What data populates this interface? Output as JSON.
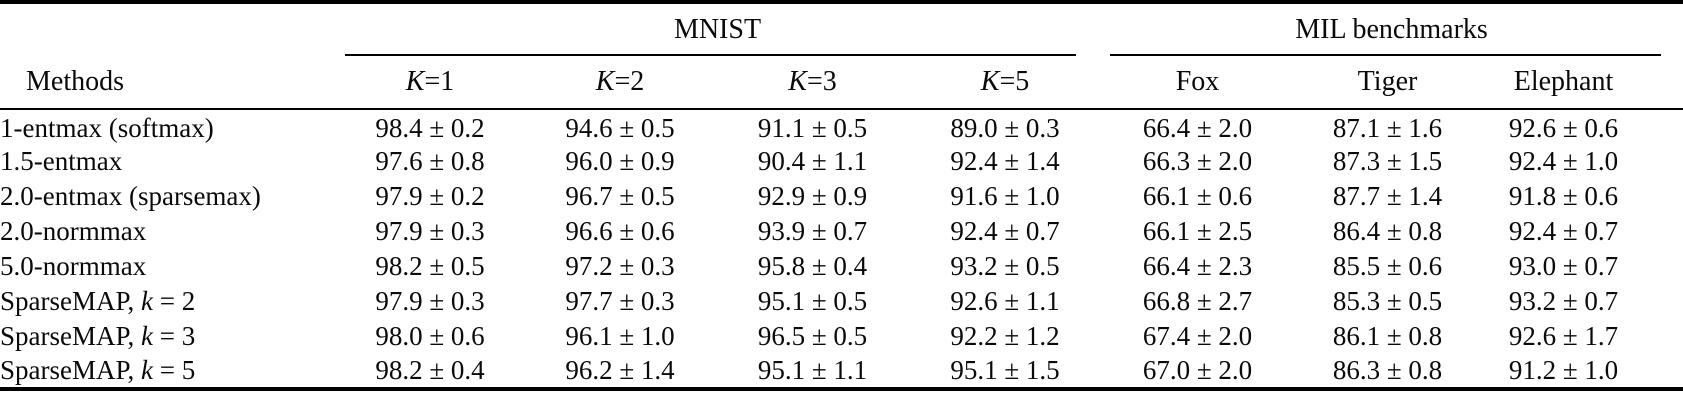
{
  "table": {
    "group_headers": [
      {
        "label": "MNIST",
        "span": 4
      },
      {
        "label": "MIL benchmarks",
        "span": 3
      }
    ],
    "methods_header": "Methods",
    "columns": [
      {
        "math": "K",
        "rest": "=1"
      },
      {
        "math": "K",
        "rest": "=2"
      },
      {
        "math": "K",
        "rest": "=3"
      },
      {
        "math": "K",
        "rest": "=5"
      },
      {
        "label": "Fox"
      },
      {
        "label": "Tiger"
      },
      {
        "label": "Elephant"
      }
    ],
    "rows": [
      {
        "method_parts": [
          {
            "text": "1-entmax (softmax)"
          }
        ],
        "cells": [
          {
            "text": "98.4 ± 0.2",
            "bold": true
          },
          {
            "text": "94.6 ± 0.5"
          },
          {
            "text": "91.1 ± 0.5"
          },
          {
            "text": "89.0 ± 0.3"
          },
          {
            "text": "66.4 ± 2.0"
          },
          {
            "text": "87.1 ± 1.6"
          },
          {
            "text": "92.6 ± 0.6"
          }
        ]
      },
      {
        "method_parts": [
          {
            "text": "1.5-entmax"
          }
        ],
        "cells": [
          {
            "text": "97.6 ± 0.8"
          },
          {
            "text": "96.0 ± 0.9"
          },
          {
            "text": "90.4 ± 1.1"
          },
          {
            "text": "92.4 ± 1.4"
          },
          {
            "text": "66.3 ± 2.0"
          },
          {
            "text": "87.3 ± 1.5"
          },
          {
            "text": "92.4 ± 1.0"
          }
        ]
      },
      {
        "method_parts": [
          {
            "text": "2.0-entmax (sparsemax)"
          }
        ],
        "cells": [
          {
            "text": "97.9 ± 0.2"
          },
          {
            "text": "96.7 ± 0.5"
          },
          {
            "text": "92.9 ± 0.9"
          },
          {
            "text": "91.6 ± 1.0"
          },
          {
            "text": "66.1 ± 0.6"
          },
          {
            "text": "87.7 ± 1.4",
            "bold": true
          },
          {
            "text": "91.8 ± 0.6"
          }
        ]
      },
      {
        "method_parts": [
          {
            "text": "2.0-normmax"
          }
        ],
        "cells": [
          {
            "text": "97.9 ± 0.3"
          },
          {
            "text": "96.6 ± 0.6"
          },
          {
            "text": "93.9 ± 0.7"
          },
          {
            "text": "92.4 ± 0.7"
          },
          {
            "text": "66.1 ± 2.5"
          },
          {
            "text": "86.4 ± 0.8"
          },
          {
            "text": "92.4 ± 0.7"
          }
        ]
      },
      {
        "method_parts": [
          {
            "text": "5.0-normmax"
          }
        ],
        "cells": [
          {
            "text": "98.2 ± 0.5"
          },
          {
            "text": "97.2 ± 0.3"
          },
          {
            "text": "95.8 ± 0.4"
          },
          {
            "text": "93.2 ± 0.5"
          },
          {
            "text": "66.4 ± 2.3"
          },
          {
            "text": "85.5 ± 0.6"
          },
          {
            "text": "93.0 ± 0.7"
          }
        ]
      },
      {
        "method_parts": [
          {
            "text": "SparseMAP, "
          },
          {
            "text": "k",
            "italic": true
          },
          {
            "text": " = 2"
          }
        ],
        "cells": [
          {
            "text": "97.9 ± 0.3"
          },
          {
            "text": "97.7 ± 0.3",
            "bold": true
          },
          {
            "text": "95.1 ± 0.5"
          },
          {
            "text": "92.6 ± 1.1"
          },
          {
            "text": "66.8 ± 2.7"
          },
          {
            "text": "85.3 ± 0.5"
          },
          {
            "text": "93.2 ± 0.7",
            "bold": true
          }
        ]
      },
      {
        "method_parts": [
          {
            "text": "SparseMAP, "
          },
          {
            "text": "k",
            "italic": true
          },
          {
            "text": " = 3"
          }
        ],
        "cells": [
          {
            "text": "98.0 ± 0.6"
          },
          {
            "text": "96.1 ± 1.0"
          },
          {
            "text": "96.5 ± 0.5",
            "bold": true
          },
          {
            "text": "92.2 ± 1.2"
          },
          {
            "text": "67.4 ± 2.0",
            "bold": true
          },
          {
            "text": "86.1 ± 0.8"
          },
          {
            "text": "92.6 ± 1.7"
          }
        ]
      },
      {
        "method_parts": [
          {
            "text": "SparseMAP, "
          },
          {
            "text": "k",
            "italic": true
          },
          {
            "text": " = 5"
          }
        ],
        "cells": [
          {
            "text": "98.2 ± 0.4"
          },
          {
            "text": "96.2 ± 1.4"
          },
          {
            "text": "95.1 ± 1.1"
          },
          {
            "text": "95.1 ± 1.5",
            "bold": true
          },
          {
            "text": "67.0 ± 2.0"
          },
          {
            "text": "86.3 ± 0.8"
          },
          {
            "text": "91.2 ± 1.0"
          }
        ]
      }
    ]
  }
}
